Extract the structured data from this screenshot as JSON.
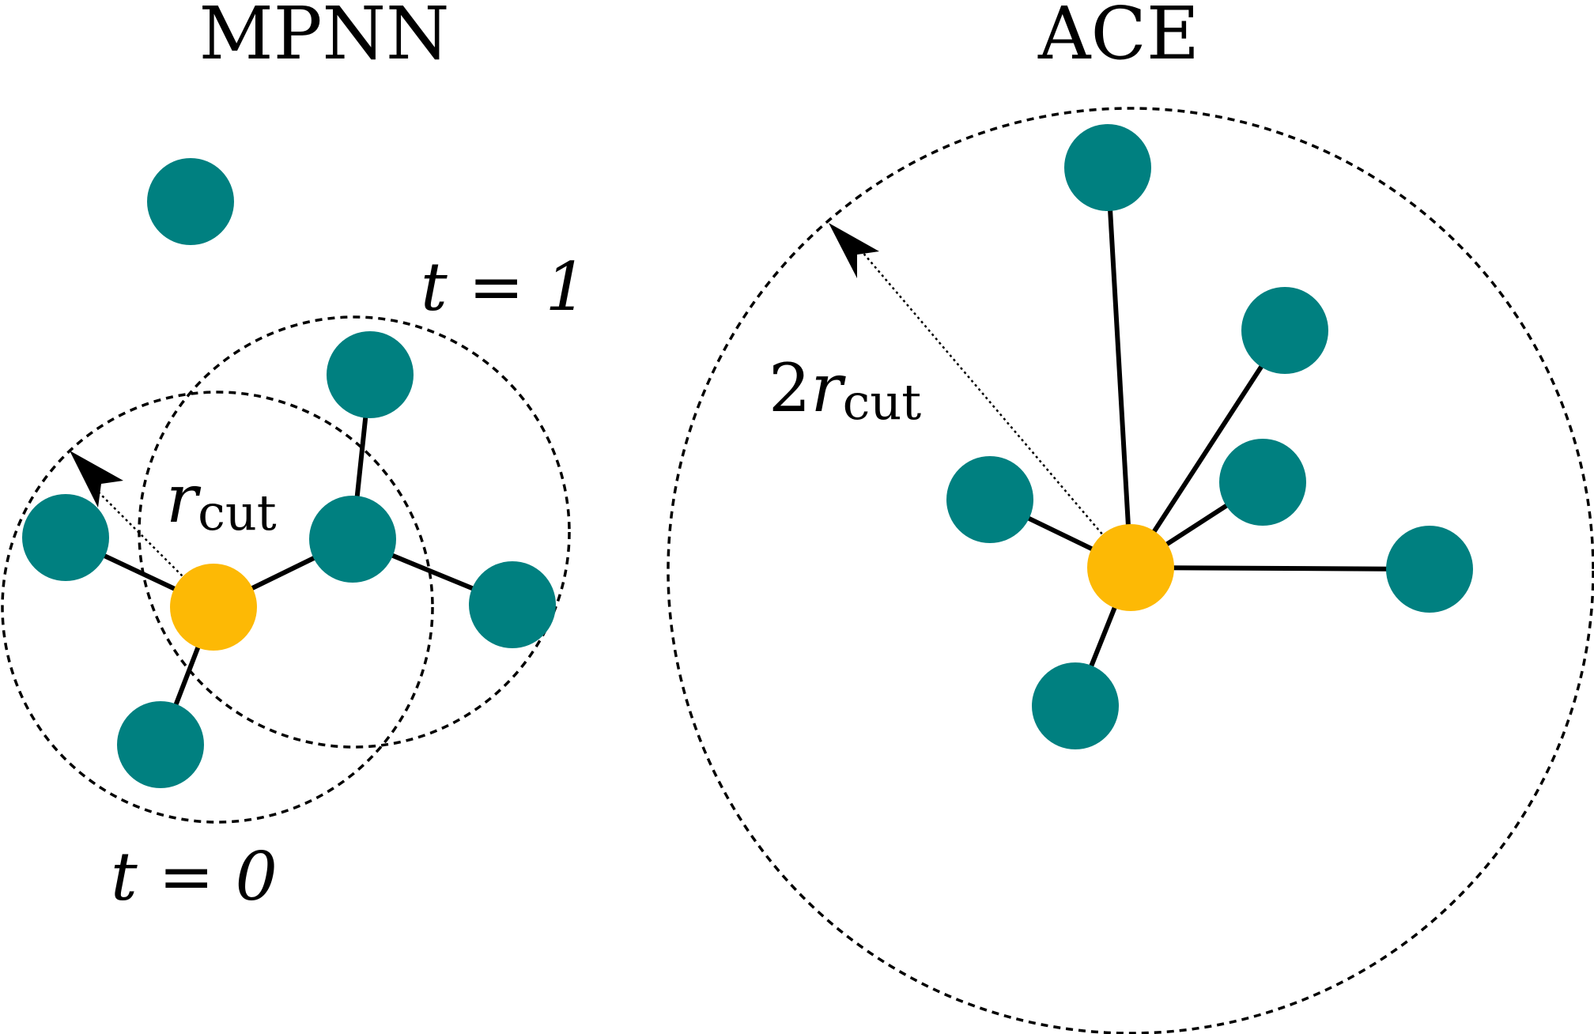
{
  "colors": {
    "neighbor_atom": "#008080",
    "center_atom": "#FDB905",
    "bond": "#000000",
    "cutoff_circle": "#000000"
  },
  "mpnn": {
    "title": "MPNN",
    "t1_label": "t = 1",
    "t0_label": "t = 0",
    "radius_symbol": "r",
    "radius_subscript": "cut"
  },
  "ace": {
    "title": "ACE",
    "radius_prefix": "2",
    "radius_symbol": "r",
    "radius_subscript": "cut"
  }
}
